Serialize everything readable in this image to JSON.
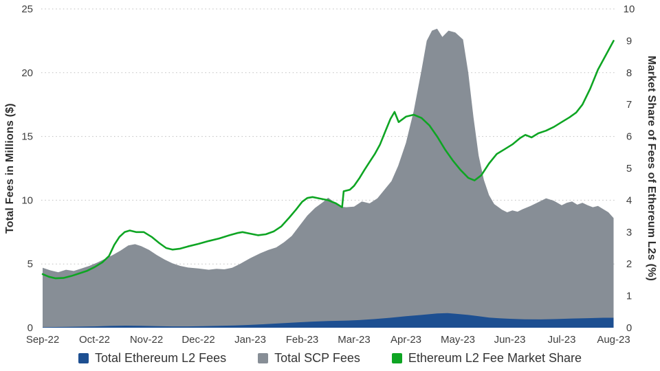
{
  "chart_data": {
    "type": "combo-area-line",
    "title": "",
    "x_labels": [
      "Sep-22",
      "Oct-22",
      "Nov-22",
      "Dec-22",
      "Jan-23",
      "Feb-23",
      "Mar-23",
      "Apr-23",
      "May-23",
      "Jun-23",
      "Jul-23",
      "Aug-23"
    ],
    "left_axis": {
      "label": "Total Fees in Millions ($)",
      "min": 0,
      "max": 25,
      "ticks": [
        0,
        5,
        10,
        15,
        20,
        25
      ],
      "grid_ticks": [
        5,
        10,
        15,
        20,
        25
      ]
    },
    "right_axis": {
      "label": "Market Share of Fees of Ethereum L2s (%)",
      "min": 0,
      "max": 10,
      "ticks": [
        0,
        1,
        2,
        3,
        4,
        5,
        6,
        7,
        8,
        9,
        10
      ]
    },
    "grid": "dotted-horizontal",
    "legend_position": "bottom-center",
    "draw_order": [
      1,
      0,
      2
    ],
    "series": [
      {
        "name": "Total Ethereum L2 Fees",
        "type": "area",
        "axis": "left",
        "color": "#1D4F91",
        "points": [
          [
            0,
            0.04
          ],
          [
            0.5,
            0.07
          ],
          [
            1.0,
            0.1
          ],
          [
            1.3,
            0.14
          ],
          [
            1.6,
            0.16
          ],
          [
            1.9,
            0.15
          ],
          [
            2.2,
            0.12
          ],
          [
            2.5,
            0.1
          ],
          [
            2.8,
            0.1
          ],
          [
            3.1,
            0.12
          ],
          [
            3.4,
            0.15
          ],
          [
            3.7,
            0.18
          ],
          [
            4.0,
            0.22
          ],
          [
            4.3,
            0.28
          ],
          [
            4.6,
            0.35
          ],
          [
            4.9,
            0.42
          ],
          [
            5.2,
            0.48
          ],
          [
            5.5,
            0.52
          ],
          [
            5.8,
            0.55
          ],
          [
            6.1,
            0.6
          ],
          [
            6.4,
            0.68
          ],
          [
            6.7,
            0.78
          ],
          [
            7.0,
            0.9
          ],
          [
            7.3,
            1.0
          ],
          [
            7.6,
            1.12
          ],
          [
            7.8,
            1.15
          ],
          [
            8.0,
            1.08
          ],
          [
            8.2,
            1.0
          ],
          [
            8.4,
            0.9
          ],
          [
            8.6,
            0.8
          ],
          [
            8.8,
            0.74
          ],
          [
            9.0,
            0.7
          ],
          [
            9.3,
            0.66
          ],
          [
            9.6,
            0.65
          ],
          [
            9.9,
            0.68
          ],
          [
            10.2,
            0.72
          ],
          [
            10.5,
            0.75
          ],
          [
            10.8,
            0.78
          ],
          [
            11.0,
            0.78
          ]
        ]
      },
      {
        "name": "Total SCP Fees",
        "type": "area",
        "axis": "left",
        "color": "#878E96",
        "points": [
          [
            0,
            4.7
          ],
          [
            0.15,
            4.5
          ],
          [
            0.3,
            4.35
          ],
          [
            0.45,
            4.55
          ],
          [
            0.6,
            4.45
          ],
          [
            0.75,
            4.65
          ],
          [
            0.9,
            4.85
          ],
          [
            1.05,
            5.1
          ],
          [
            1.2,
            5.4
          ],
          [
            1.35,
            5.7
          ],
          [
            1.5,
            6.05
          ],
          [
            1.65,
            6.45
          ],
          [
            1.78,
            6.55
          ],
          [
            1.9,
            6.4
          ],
          [
            2.05,
            6.1
          ],
          [
            2.2,
            5.7
          ],
          [
            2.35,
            5.35
          ],
          [
            2.5,
            5.05
          ],
          [
            2.65,
            4.85
          ],
          [
            2.8,
            4.72
          ],
          [
            3.0,
            4.65
          ],
          [
            3.2,
            4.55
          ],
          [
            3.35,
            4.62
          ],
          [
            3.5,
            4.58
          ],
          [
            3.65,
            4.7
          ],
          [
            3.8,
            5.0
          ],
          [
            4.0,
            5.45
          ],
          [
            4.2,
            5.85
          ],
          [
            4.35,
            6.1
          ],
          [
            4.5,
            6.3
          ],
          [
            4.65,
            6.7
          ],
          [
            4.8,
            7.2
          ],
          [
            4.95,
            8.0
          ],
          [
            5.1,
            8.8
          ],
          [
            5.25,
            9.4
          ],
          [
            5.4,
            9.85
          ],
          [
            5.5,
            10.2
          ],
          [
            5.6,
            9.9
          ],
          [
            5.72,
            9.5
          ],
          [
            5.85,
            9.45
          ],
          [
            6.0,
            9.5
          ],
          [
            6.15,
            9.9
          ],
          [
            6.3,
            9.75
          ],
          [
            6.45,
            10.15
          ],
          [
            6.6,
            10.9
          ],
          [
            6.72,
            11.5
          ],
          [
            6.85,
            12.7
          ],
          [
            7.0,
            14.5
          ],
          [
            7.15,
            17.0
          ],
          [
            7.3,
            20.2
          ],
          [
            7.4,
            22.5
          ],
          [
            7.5,
            23.3
          ],
          [
            7.6,
            23.45
          ],
          [
            7.7,
            22.8
          ],
          [
            7.82,
            23.3
          ],
          [
            7.95,
            23.15
          ],
          [
            8.1,
            22.6
          ],
          [
            8.2,
            20.0
          ],
          [
            8.3,
            16.5
          ],
          [
            8.4,
            13.5
          ],
          [
            8.5,
            11.6
          ],
          [
            8.6,
            10.4
          ],
          [
            8.7,
            9.7
          ],
          [
            8.85,
            9.25
          ],
          [
            8.95,
            9.05
          ],
          [
            9.05,
            9.2
          ],
          [
            9.15,
            9.1
          ],
          [
            9.25,
            9.3
          ],
          [
            9.4,
            9.55
          ],
          [
            9.55,
            9.85
          ],
          [
            9.7,
            10.15
          ],
          [
            9.85,
            9.95
          ],
          [
            10.0,
            9.6
          ],
          [
            10.1,
            9.8
          ],
          [
            10.2,
            9.9
          ],
          [
            10.3,
            9.65
          ],
          [
            10.4,
            9.8
          ],
          [
            10.5,
            9.6
          ],
          [
            10.6,
            9.45
          ],
          [
            10.7,
            9.55
          ],
          [
            10.8,
            9.3
          ],
          [
            10.9,
            9.05
          ],
          [
            11.0,
            8.6
          ]
        ]
      },
      {
        "name": "Ethereum L2 Fee Market Share",
        "type": "line",
        "axis": "right",
        "color": "#0EA523",
        "points": [
          [
            0,
            1.68
          ],
          [
            0.12,
            1.6
          ],
          [
            0.25,
            1.55
          ],
          [
            0.4,
            1.56
          ],
          [
            0.55,
            1.62
          ],
          [
            0.7,
            1.7
          ],
          [
            0.85,
            1.78
          ],
          [
            1.0,
            1.9
          ],
          [
            1.15,
            2.05
          ],
          [
            1.28,
            2.25
          ],
          [
            1.38,
            2.6
          ],
          [
            1.48,
            2.85
          ],
          [
            1.58,
            3.0
          ],
          [
            1.68,
            3.05
          ],
          [
            1.8,
            3.0
          ],
          [
            1.95,
            3.0
          ],
          [
            2.1,
            2.85
          ],
          [
            2.25,
            2.65
          ],
          [
            2.38,
            2.5
          ],
          [
            2.5,
            2.45
          ],
          [
            2.65,
            2.48
          ],
          [
            2.8,
            2.55
          ],
          [
            3.0,
            2.63
          ],
          [
            3.2,
            2.72
          ],
          [
            3.4,
            2.8
          ],
          [
            3.6,
            2.9
          ],
          [
            3.75,
            2.97
          ],
          [
            3.85,
            3.0
          ],
          [
            4.0,
            2.95
          ],
          [
            4.15,
            2.9
          ],
          [
            4.3,
            2.93
          ],
          [
            4.45,
            3.02
          ],
          [
            4.6,
            3.18
          ],
          [
            4.75,
            3.45
          ],
          [
            4.88,
            3.7
          ],
          [
            5.0,
            3.95
          ],
          [
            5.1,
            4.07
          ],
          [
            5.2,
            4.1
          ],
          [
            5.35,
            4.05
          ],
          [
            5.5,
            4.0
          ],
          [
            5.65,
            3.9
          ],
          [
            5.77,
            3.78
          ],
          [
            5.8,
            4.28
          ],
          [
            5.92,
            4.33
          ],
          [
            6.0,
            4.45
          ],
          [
            6.1,
            4.68
          ],
          [
            6.2,
            4.95
          ],
          [
            6.3,
            5.2
          ],
          [
            6.4,
            5.45
          ],
          [
            6.5,
            5.75
          ],
          [
            6.6,
            6.15
          ],
          [
            6.7,
            6.55
          ],
          [
            6.78,
            6.77
          ],
          [
            6.86,
            6.45
          ],
          [
            7.0,
            6.62
          ],
          [
            7.15,
            6.68
          ],
          [
            7.3,
            6.58
          ],
          [
            7.45,
            6.35
          ],
          [
            7.6,
            6.0
          ],
          [
            7.75,
            5.6
          ],
          [
            7.9,
            5.25
          ],
          [
            8.05,
            4.95
          ],
          [
            8.2,
            4.7
          ],
          [
            8.32,
            4.62
          ],
          [
            8.45,
            4.78
          ],
          [
            8.6,
            5.15
          ],
          [
            8.75,
            5.45
          ],
          [
            8.9,
            5.6
          ],
          [
            9.05,
            5.75
          ],
          [
            9.2,
            5.95
          ],
          [
            9.3,
            6.05
          ],
          [
            9.42,
            5.97
          ],
          [
            9.55,
            6.1
          ],
          [
            9.7,
            6.18
          ],
          [
            9.85,
            6.3
          ],
          [
            10.0,
            6.45
          ],
          [
            10.15,
            6.6
          ],
          [
            10.28,
            6.75
          ],
          [
            10.4,
            7.0
          ],
          [
            10.55,
            7.5
          ],
          [
            10.7,
            8.1
          ],
          [
            10.85,
            8.55
          ],
          [
            10.95,
            8.85
          ],
          [
            11.0,
            9.0
          ]
        ]
      }
    ],
    "legend": [
      "Total Ethereum L2 Fees",
      "Total SCP Fees",
      "Ethereum L2 Fee Market Share"
    ]
  },
  "colors": {
    "background": "#ffffff",
    "grid": "#bdbdbd",
    "tick_text": "#3d3d3d",
    "axis_title_text": "#2e2e2e",
    "legend_text": "#333333"
  }
}
